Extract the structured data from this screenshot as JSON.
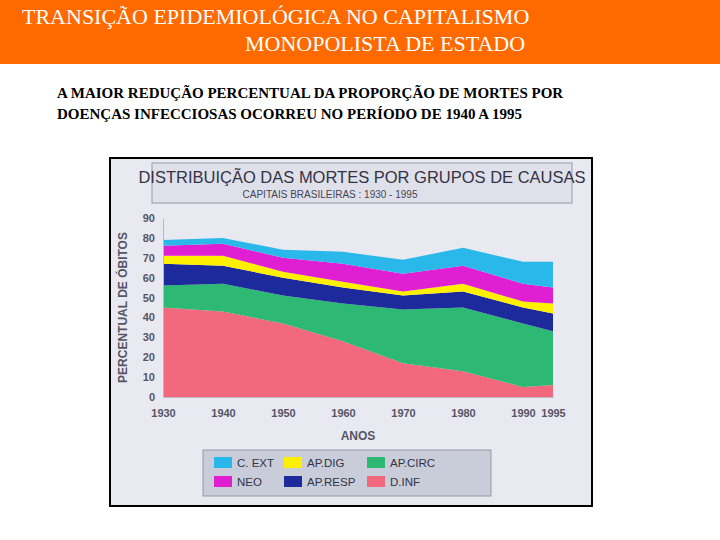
{
  "slide": {
    "title_lines": [
      "TRANSIÇÃO EPIDEMIOLÓGICA NO CAPITALISMO",
      "MONOPOLISTA DE ESTADO"
    ],
    "text_lines": [
      "A MAIOR REDUÇÃO PERCENTUAL DA PROPORÇÃO DE MORTES POR",
      "DOENÇAS INFECCIOSAS OCORREU NO PERÍODO DE 1940 A 1995"
    ]
  },
  "chart_data": {
    "type": "area",
    "stacked": true,
    "title": "DISTRIBUIÇÃO DAS MORTES POR GRUPOS DE CAUSAS",
    "subtitle": "CAPITAIS BRASILEIRAS : 1930 - 1995",
    "x_label": "ANOS",
    "y_label": "PERCENTUAL DE ÓBITOS",
    "x": [
      1930,
      1940,
      1950,
      1960,
      1970,
      1980,
      1990,
      1995
    ],
    "xlim": [
      1930,
      1995
    ],
    "xticks": [
      1930,
      1940,
      1950,
      1960,
      1970,
      1980,
      1990,
      1995
    ],
    "ylim": [
      0,
      90
    ],
    "yticks": [
      0,
      10,
      20,
      30,
      40,
      50,
      60,
      70,
      80,
      90
    ],
    "grid": false,
    "legend": "bottom",
    "series": [
      {
        "name": "D.INF",
        "color": "#f2687c",
        "values": [
          45,
          43,
          37,
          28,
          17,
          13,
          5,
          6
        ]
      },
      {
        "name": "AP.CIRC",
        "color": "#2db873",
        "values": [
          11,
          14,
          14,
          19,
          27,
          32,
          32,
          27
        ]
      },
      {
        "name": "AP.RESP",
        "color": "#1c2a9c",
        "values": [
          11,
          9,
          9,
          8,
          7,
          8,
          8,
          9
        ]
      },
      {
        "name": "AP.DIG",
        "color": "#fff000",
        "values": [
          4,
          5,
          3,
          3,
          2,
          4,
          3,
          5
        ]
      },
      {
        "name": "NEO",
        "color": "#e01ed2",
        "values": [
          5,
          6,
          7,
          9,
          9,
          9,
          9,
          8
        ]
      },
      {
        "name": "C. EXT",
        "color": "#2ab7ea",
        "values": [
          3,
          3,
          4,
          6,
          7,
          9,
          11,
          13
        ]
      }
    ]
  }
}
